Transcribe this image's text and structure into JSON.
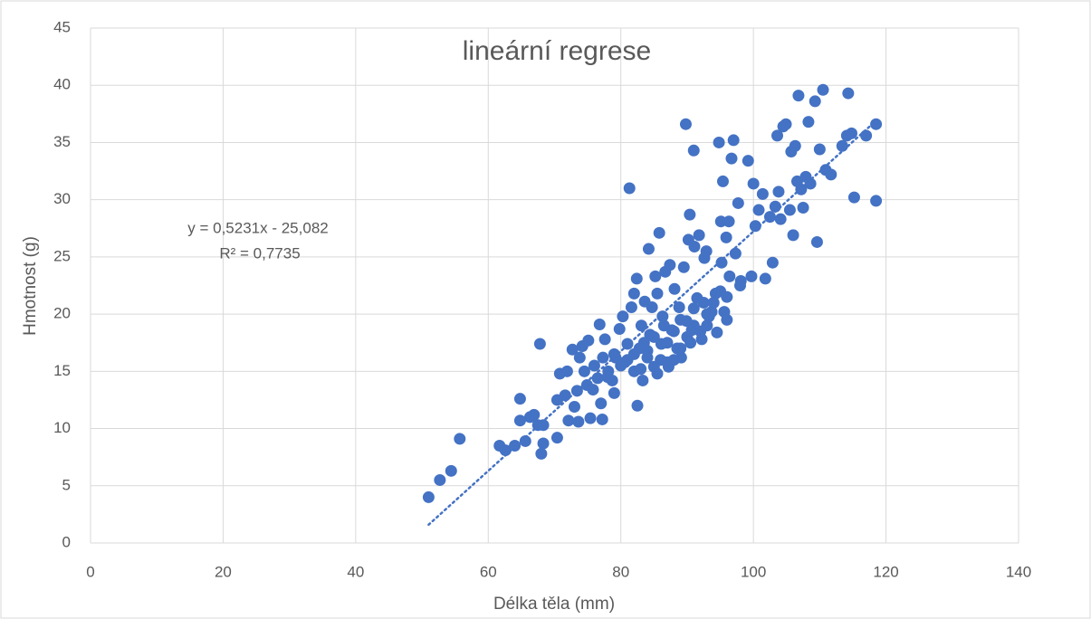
{
  "chart_data": {
    "type": "scatter",
    "title": "lineární regrese",
    "x_label": "Délka těla (mm)",
    "y_label": "Hmotnost (g)",
    "annotations": [
      "y = 0,5231x - 25,082",
      "R² = 0,7735"
    ],
    "trendline": {
      "slope": 0.5231,
      "intercept": -25.082
    },
    "color": "#4472c4",
    "grid": true,
    "xlim": [
      0,
      140
    ],
    "xticks": [
      0,
      20,
      40,
      60,
      80,
      100,
      120,
      140
    ],
    "ylim": [
      0,
      45
    ],
    "yticks": [
      0,
      5,
      10,
      15,
      20,
      25,
      30,
      35,
      40,
      45
    ],
    "x": [
      51,
      52.7,
      54.4,
      55.7,
      61.7,
      62.6,
      64,
      64.8,
      64.8,
      65.6,
      66.3,
      66.9,
      67.5,
      67.8,
      68,
      68.3,
      68.3,
      70.4,
      70.4,
      70.8,
      71.6,
      71.9,
      72.1,
      72.7,
      73,
      73.4,
      73.6,
      73.8,
      74.2,
      74.5,
      74.9,
      75.1,
      75.4,
      75.8,
      76.5,
      76.8,
      77,
      77.2,
      77.3,
      77.6,
      78.1,
      78.7,
      79,
      79.2,
      79.8,
      80.3,
      80.6,
      81,
      81.3,
      81.6,
      82,
      82,
      82.4,
      82.5,
      82.8,
      83.1,
      83.3,
      83.6,
      84,
      84.2,
      84.4,
      84.7,
      85,
      85.2,
      85.5,
      85.8,
      86.1,
      86.3,
      86.7,
      87.2,
      87.4,
      87.7,
      88.1,
      88.5,
      88.8,
      89.1,
      89.5,
      89.8,
      89.9,
      90.2,
      90.4,
      90.7,
      91,
      91.1,
      91.5,
      91.8,
      92.2,
      92.5,
      92.6,
      92.9,
      93.3,
      93.7,
      94.3,
      94.5,
      94.8,
      95.1,
      95.2,
      95.4,
      95.6,
      95.9,
      96,
      96.3,
      96.4,
      96.7,
      97,
      97.3,
      97.7,
      98.1,
      99.2,
      99.7,
      100,
      100.3,
      100.8,
      101.4,
      101.8,
      102.5,
      102.9,
      103.3,
      103.6,
      103.8,
      104.1,
      104.5,
      104.9,
      105.5,
      105.7,
      106,
      106.3,
      106.6,
      106.8,
      107.2,
      107.5,
      107.9,
      108.3,
      108.6,
      109.3,
      109.6,
      110,
      110.5,
      110.9,
      111.7,
      113.4,
      114.1,
      114.3,
      114.8,
      115.2,
      117,
      118.5,
      118.5,
      82,
      83.5,
      85,
      86,
      87,
      88,
      89,
      90,
      91,
      92,
      93,
      84,
      86.5,
      88,
      79,
      81,
      87,
      90.5,
      94,
      95,
      96,
      98,
      78,
      80,
      83,
      85.5,
      89,
      91,
      93,
      76
    ],
    "values": [
      4,
      5.5,
      6.3,
      9.1,
      8.5,
      8.1,
      8.5,
      12.6,
      10.7,
      8.9,
      11,
      11.2,
      10.3,
      17.4,
      7.8,
      8.7,
      10.3,
      9.2,
      12.5,
      14.8,
      12.9,
      15,
      10.7,
      16.9,
      11.9,
      13.3,
      10.6,
      16.2,
      17.2,
      15,
      13.8,
      17.7,
      10.9,
      13.4,
      14.4,
      19.1,
      12.2,
      10.8,
      16.2,
      17.8,
      15,
      14.2,
      13.1,
      16.2,
      18.7,
      19.8,
      15.8,
      17.4,
      31,
      20.6,
      15,
      21.8,
      23.1,
      12,
      17,
      19,
      14.2,
      21.1,
      16.2,
      25.7,
      18.2,
      20.6,
      15.4,
      23.3,
      21.8,
      27.1,
      17.4,
      19.8,
      23.7,
      15.4,
      24.3,
      18.6,
      22.2,
      17,
      20.6,
      16.2,
      24.1,
      36.6,
      19.4,
      26.5,
      28.7,
      18.6,
      34.3,
      25.9,
      21.4,
      26.9,
      17.8,
      21,
      24.9,
      25.5,
      19.8,
      20.2,
      21.8,
      18.4,
      35,
      28.1,
      24.5,
      31.6,
      20.2,
      26.7,
      19.5,
      28.1,
      23.3,
      33.6,
      35.2,
      25.3,
      29.7,
      22.9,
      33.4,
      23.3,
      31.4,
      27.7,
      29.1,
      30.5,
      23.1,
      28.5,
      24.5,
      29.4,
      35.6,
      30.7,
      28.3,
      36.4,
      36.6,
      29.1,
      34.2,
      26.9,
      34.7,
      31.6,
      39.1,
      30.9,
      29.3,
      32,
      36.8,
      31.4,
      38.6,
      26.3,
      34.4,
      39.6,
      32.6,
      32.2,
      34.7,
      35.6,
      39.3,
      35.8,
      30.2,
      35.6,
      36.6,
      29.9,
      16.5,
      17.5,
      18,
      16,
      17.5,
      18.5,
      17,
      18,
      19,
      18.5,
      20,
      16.8,
      19,
      16,
      16.5,
      16,
      15.8,
      17.5,
      21,
      22,
      21.5,
      22.5,
      14.5,
      15.5,
      15.2,
      14.8,
      19.5,
      20.5,
      19,
      15.5
    ]
  }
}
